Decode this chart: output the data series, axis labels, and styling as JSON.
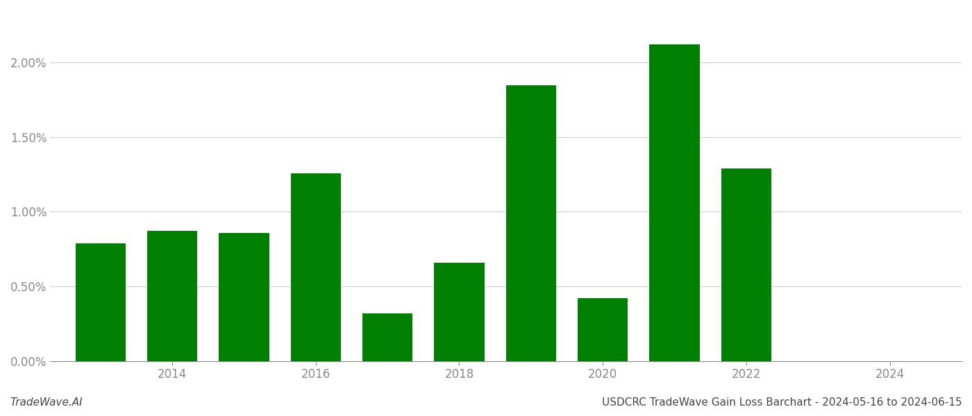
{
  "years": [
    2013,
    2014,
    2015,
    2016,
    2017,
    2018,
    2019,
    2020,
    2021,
    2022
  ],
  "values": [
    0.0079,
    0.0087,
    0.0086,
    0.0126,
    0.0032,
    0.0066,
    0.0185,
    0.0042,
    0.0212,
    0.0129
  ],
  "bar_color": "#008000",
  "footer_left": "TradeWave.AI",
  "footer_right": "USDCRC TradeWave Gain Loss Barchart - 2024-05-16 to 2024-06-15",
  "ylim": [
    0.0,
    0.0235
  ],
  "yticks": [
    0.0,
    0.005,
    0.01,
    0.015,
    0.02
  ],
  "ytick_labels": [
    "0.00%",
    "0.50%",
    "1.00%",
    "1.50%",
    "2.00%"
  ],
  "xtick_positions": [
    2014,
    2016,
    2018,
    2020,
    2022,
    2024
  ],
  "xtick_labels": [
    "2014",
    "2016",
    "2018",
    "2020",
    "2022",
    "2024"
  ],
  "xlim": [
    2012.3,
    2025.0
  ],
  "background_color": "#ffffff",
  "bar_width": 0.7,
  "grid_color": "#cccccc",
  "axis_color": "#888888",
  "tick_color": "#888888",
  "font_color_footer": "#444444",
  "footer_fontsize": 11
}
